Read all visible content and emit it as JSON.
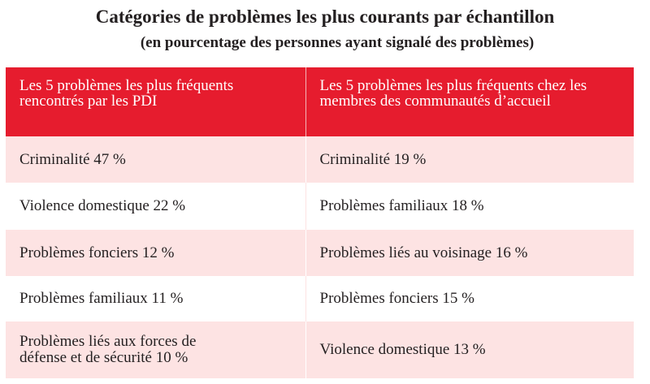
{
  "title": "Catégories de problèmes les plus courants par échantillon",
  "subtitle": "(en pourcentage des personnes ayant signalé des problèmes)",
  "table": {
    "headers": [
      "Les 5 problèmes les plus fréquents rencontrés par les PDI",
      "Les 5 problèmes les plus fréquents chez les membres des communautés d’accueil"
    ],
    "rows": [
      [
        "Criminalité 47 %",
        "Criminalité 19 %"
      ],
      [
        "Violence domestique 22 %",
        "Problèmes familiaux 18 %"
      ],
      [
        "Problèmes fonciers 12 %",
        "Problèmes liés au voisinage 16 %"
      ],
      [
        "Problèmes familiaux 11 %",
        "Problèmes fonciers 15 %"
      ],
      [
        "Problèmes liés aux forces de défense et de sécurité 10 %",
        "Violence domestique 13 %"
      ]
    ]
  },
  "colors": {
    "header": "#e61c2e",
    "stripe": "#fde3e3"
  }
}
